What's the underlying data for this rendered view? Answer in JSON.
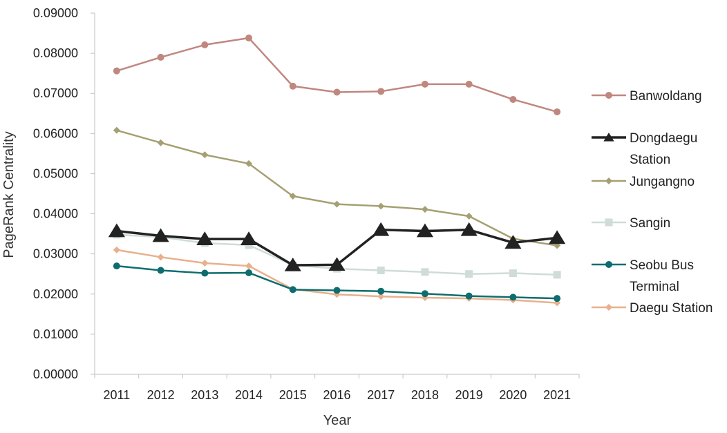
{
  "chart_data": {
    "type": "line",
    "title": "",
    "xlabel": "Year",
    "ylabel": "PageRank Centrality",
    "categories": [
      "2011",
      "2012",
      "2013",
      "2014",
      "2015",
      "2016",
      "2017",
      "2018",
      "2019",
      "2020",
      "2021"
    ],
    "ylim": [
      0,
      0.09
    ],
    "yticks": [
      "0.00000",
      "0.01000",
      "0.02000",
      "0.03000",
      "0.04000",
      "0.05000",
      "0.06000",
      "0.07000",
      "0.08000",
      "0.09000"
    ],
    "grid": false,
    "legend_position": "right",
    "series": [
      {
        "name": "Banwoldang",
        "name_lines": [
          "Banwoldang"
        ],
        "color": "#c0877f",
        "marker": "circle",
        "values": [
          0.0756,
          0.079,
          0.0821,
          0.0838,
          0.0718,
          0.0703,
          0.0705,
          0.0723,
          0.0723,
          0.0685,
          0.0654
        ]
      },
      {
        "name": "Dongdaegu Station",
        "name_lines": [
          "Dongdaegu",
          "Station"
        ],
        "color": "#222222",
        "marker": "triangle",
        "values": [
          0.0357,
          0.0345,
          0.0337,
          0.0337,
          0.0272,
          0.0273,
          0.036,
          0.0357,
          0.036,
          0.0328,
          0.034
        ]
      },
      {
        "name": "Jungangno",
        "name_lines": [
          "Jungangno"
        ],
        "color": "#a5a072",
        "marker": "diamond",
        "values": [
          0.0608,
          0.0577,
          0.0547,
          0.0525,
          0.0444,
          0.0424,
          0.0419,
          0.0411,
          0.0394,
          0.0338,
          0.0321
        ]
      },
      {
        "name": "Sangin",
        "name_lines": [
          "Sangin"
        ],
        "color": "#cfdcd9",
        "marker": "square",
        "values": [
          0.0348,
          0.0342,
          0.0327,
          0.0322,
          0.0272,
          0.0263,
          0.0259,
          0.0255,
          0.025,
          0.0252,
          0.0248
        ]
      },
      {
        "name": "Seobu Bus Terminal",
        "name_lines": [
          "Seobu Bus",
          "Terminal"
        ],
        "color": "#0e6d6e",
        "marker": "circle",
        "values": [
          0.027,
          0.0259,
          0.0252,
          0.0253,
          0.0211,
          0.0209,
          0.0207,
          0.0201,
          0.0195,
          0.0192,
          0.0189
        ]
      },
      {
        "name": "Daegu Station",
        "name_lines": [
          "Daegu Station"
        ],
        "color": "#e8b08c",
        "marker": "diamond",
        "values": [
          0.031,
          0.0292,
          0.0277,
          0.027,
          0.0212,
          0.0199,
          0.0194,
          0.0191,
          0.0189,
          0.0185,
          0.0178
        ]
      }
    ]
  }
}
